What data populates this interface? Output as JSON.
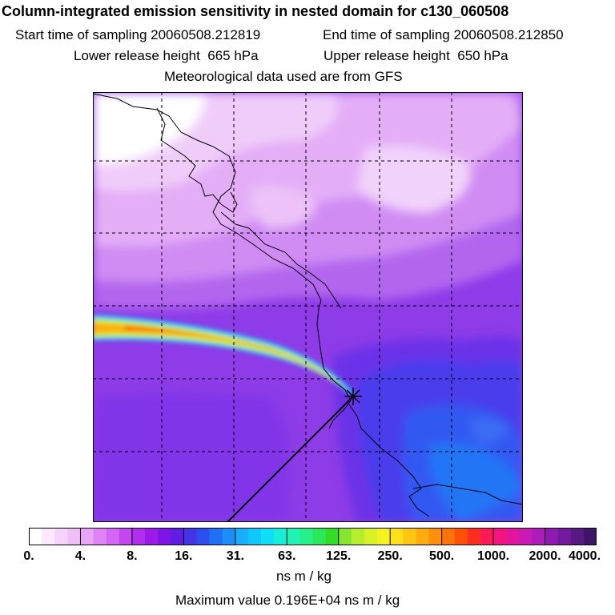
{
  "header": {
    "title": "Column-integrated emission sensitivity in nested domain for c130_060508",
    "start_time": "Start time of sampling 20060508.212819",
    "end_time": "End time of sampling 20060508.212850",
    "lower_release": "Lower release height  665 hPa",
    "upper_release": "Upper release height  650 hPa",
    "met_data": "Meteorological data used are from GFS"
  },
  "colorbar": {
    "ticks": [
      "0.",
      "4.",
      "8.",
      "16.",
      "31.",
      "63.",
      "125.",
      "250.",
      "500.",
      "1000.",
      "2000.",
      "4000."
    ],
    "colors": [
      "#ffffff",
      "#fbe8fd",
      "#f6d3fb",
      "#f1bff8",
      "#e9a4f6",
      "#df84f4",
      "#d366f2",
      "#c347ef",
      "#b02eec",
      "#9b1ae8",
      "#7f14e6",
      "#5f1ee4",
      "#4334e8",
      "#2e4ff0",
      "#2070f5",
      "#1b8ff8",
      "#18aefb",
      "#11c8fc",
      "#0fdff6",
      "#16eed8",
      "#1ff3b3",
      "#25f08a",
      "#2ae857",
      "#33dd22",
      "#84e62e",
      "#b4ee2c",
      "#d8f226",
      "#f6f220",
      "#ffe018",
      "#ffc712",
      "#ffad0d",
      "#ff9009",
      "#ff7206",
      "#ff5104",
      "#ff2d22",
      "#ff1a55",
      "#f5147d",
      "#e2169c",
      "#c91ab3",
      "#ad1cb8",
      "#8e1ab0",
      "#711a9c",
      "#571a82",
      "#3f1665"
    ],
    "units": "ns m / kg"
  },
  "max_value": "Maximum value  0.196E+04 ns m / kg",
  "colors": {
    "background": "#8f3fe8",
    "plume_core": "#ff2a10",
    "plume_edge": "#18d8f8",
    "low_sensitivity": "#f0c8f8",
    "blue_region": "#3a5cf0"
  }
}
